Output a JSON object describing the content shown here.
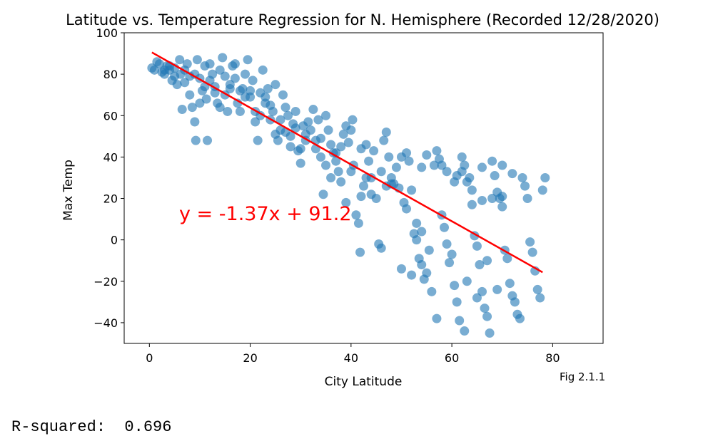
{
  "chart_data": {
    "type": "scatter",
    "title": "Latitude vs. Temperature Regression for N. Hemisphere (Recorded 12/28/2020)",
    "xlabel": "City Latitude",
    "ylabel": "Max Temp",
    "xlim": [
      -5,
      90
    ],
    "ylim": [
      -50,
      100
    ],
    "xticks": [
      0,
      20,
      40,
      60,
      80
    ],
    "yticks": [
      -40,
      -20,
      0,
      20,
      40,
      60,
      80,
      100
    ],
    "grid": false,
    "point_color": "#1f77b4",
    "line_color": "#ff0000",
    "regression": {
      "slope": -1.37,
      "intercept": 91.2,
      "x_range": [
        0.5,
        78
      ],
      "equation_label": "y = -1.37x + 91.2"
    },
    "figure_label": "Fig 2.1.1",
    "points": [
      [
        0.5,
        83
      ],
      [
        1.5,
        86
      ],
      [
        2.5,
        81
      ],
      [
        3,
        80
      ],
      [
        3.5,
        84
      ],
      [
        4,
        82
      ],
      [
        4.5,
        77
      ],
      [
        5,
        79
      ],
      [
        5.5,
        75
      ],
      [
        6,
        87
      ],
      [
        6.2,
        80
      ],
      [
        6.5,
        63
      ],
      [
        7,
        82
      ],
      [
        7.5,
        85
      ],
      [
        8,
        70
      ],
      [
        8.5,
        64
      ],
      [
        9,
        57
      ],
      [
        9.2,
        48
      ],
      [
        9.5,
        87
      ],
      [
        10,
        78
      ],
      [
        10.5,
        72
      ],
      [
        11,
        84
      ],
      [
        11.3,
        68
      ],
      [
        11.5,
        48
      ],
      [
        12,
        85
      ],
      [
        12.5,
        80
      ],
      [
        13,
        74
      ],
      [
        13.5,
        66
      ],
      [
        14,
        82
      ],
      [
        14.5,
        88
      ],
      [
        15,
        70
      ],
      [
        15.5,
        62
      ],
      [
        16,
        73
      ],
      [
        16.5,
        84
      ],
      [
        17,
        85
      ],
      [
        17.5,
        66
      ],
      [
        18,
        62
      ],
      [
        18.5,
        73
      ],
      [
        19,
        80
      ],
      [
        19.5,
        87
      ],
      [
        20,
        69
      ],
      [
        20.5,
        77
      ],
      [
        21,
        57
      ],
      [
        21.5,
        48
      ],
      [
        22,
        60
      ],
      [
        22.5,
        82
      ],
      [
        23,
        69
      ],
      [
        23.5,
        73
      ],
      [
        24,
        58
      ],
      [
        24.5,
        62
      ],
      [
        25,
        75
      ],
      [
        25.5,
        48
      ],
      [
        26,
        53
      ],
      [
        26.5,
        70
      ],
      [
        27,
        64
      ],
      [
        27.5,
        60
      ],
      [
        28,
        50
      ],
      [
        28.5,
        56
      ],
      [
        29,
        62
      ],
      [
        29.5,
        43
      ],
      [
        30,
        37
      ],
      [
        30.5,
        55
      ],
      [
        31,
        48
      ],
      [
        31.5,
        57
      ],
      [
        32,
        53
      ],
      [
        32.5,
        63
      ],
      [
        33,
        44
      ],
      [
        33.5,
        58
      ],
      [
        34,
        49
      ],
      [
        34.5,
        22
      ],
      [
        35,
        60
      ],
      [
        35.5,
        53
      ],
      [
        36,
        46
      ],
      [
        36.5,
        42
      ],
      [
        37,
        38
      ],
      [
        37.5,
        33
      ],
      [
        38,
        28
      ],
      [
        38.5,
        51
      ],
      [
        39,
        55
      ],
      [
        39.5,
        47
      ],
      [
        40,
        53
      ],
      [
        40.3,
        58
      ],
      [
        40.5,
        36
      ],
      [
        41,
        12
      ],
      [
        41.5,
        8
      ],
      [
        41.8,
        -6
      ],
      [
        42,
        21
      ],
      [
        42.5,
        26
      ],
      [
        43,
        46
      ],
      [
        43.5,
        38
      ],
      [
        44,
        30
      ],
      [
        44.5,
        43
      ],
      [
        45,
        20
      ],
      [
        45.5,
        -2
      ],
      [
        46,
        -4
      ],
      [
        46.5,
        48
      ],
      [
        47,
        52
      ],
      [
        47.5,
        40
      ],
      [
        48,
        30
      ],
      [
        48.5,
        27
      ],
      [
        49,
        35
      ],
      [
        49.5,
        25
      ],
      [
        50,
        -14
      ],
      [
        50.5,
        18
      ],
      [
        51,
        42
      ],
      [
        51.5,
        38
      ],
      [
        52,
        24
      ],
      [
        52.5,
        3
      ],
      [
        53,
        0
      ],
      [
        53.5,
        -9
      ],
      [
        54,
        -12
      ],
      [
        54.5,
        -19
      ],
      [
        55,
        -16
      ],
      [
        55.5,
        -5
      ],
      [
        56,
        -25
      ],
      [
        56.5,
        36
      ],
      [
        57,
        43
      ],
      [
        57.5,
        39
      ],
      [
        58,
        12
      ],
      [
        58.5,
        6
      ],
      [
        59,
        -2
      ],
      [
        59.5,
        -11
      ],
      [
        60,
        -7
      ],
      [
        60.5,
        -22
      ],
      [
        61,
        -30
      ],
      [
        61.5,
        -39
      ],
      [
        62,
        40
      ],
      [
        62.5,
        36
      ],
      [
        63,
        28
      ],
      [
        63.5,
        30
      ],
      [
        64,
        17
      ],
      [
        64.5,
        2
      ],
      [
        65,
        -3
      ],
      [
        65.5,
        -12
      ],
      [
        66,
        -25
      ],
      [
        66.5,
        -33
      ],
      [
        67,
        -37
      ],
      [
        67.5,
        -45
      ],
      [
        68,
        38
      ],
      [
        68.5,
        31
      ],
      [
        69,
        23
      ],
      [
        69.5,
        20
      ],
      [
        70,
        16
      ],
      [
        70.5,
        -5
      ],
      [
        71,
        -9
      ],
      [
        71.5,
        -21
      ],
      [
        72,
        -27
      ],
      [
        72.5,
        -30
      ],
      [
        73,
        -36
      ],
      [
        73.5,
        -38
      ],
      [
        74,
        30
      ],
      [
        74.5,
        26
      ],
      [
        75,
        20
      ],
      [
        75.5,
        -1
      ],
      [
        76,
        -6
      ],
      [
        76.5,
        -15
      ],
      [
        77,
        -24
      ],
      [
        77.5,
        -28
      ],
      [
        78,
        24
      ],
      [
        78.5,
        30
      ],
      [
        60.5,
        28
      ],
      [
        62.5,
        -44
      ],
      [
        57,
        -38
      ],
      [
        63,
        -20
      ],
      [
        65,
        -28
      ],
      [
        67,
        -10
      ],
      [
        69,
        -24
      ],
      [
        52,
        -17
      ],
      [
        54,
        4
      ],
      [
        48,
        27
      ],
      [
        44,
        22
      ],
      [
        40,
        33
      ],
      [
        36,
        30
      ],
      [
        33,
        48
      ],
      [
        28,
        45
      ],
      [
        24,
        65
      ],
      [
        20,
        72
      ],
      [
        16,
        75
      ],
      [
        12,
        77
      ],
      [
        8,
        79
      ],
      [
        4,
        84
      ],
      [
        3,
        82
      ],
      [
        10,
        66
      ],
      [
        14,
        64
      ],
      [
        18,
        72
      ],
      [
        22,
        71
      ],
      [
        26,
        58
      ],
      [
        30,
        44
      ],
      [
        34,
        40
      ],
      [
        38,
        45
      ],
      [
        42,
        44
      ],
      [
        46,
        33
      ],
      [
        50,
        40
      ],
      [
        54,
        35
      ],
      [
        58,
        36
      ],
      [
        62,
        33
      ],
      [
        66,
        35
      ],
      [
        70,
        36
      ],
      [
        72,
        32
      ],
      [
        55,
        41
      ],
      [
        59,
        33
      ],
      [
        61,
        31
      ],
      [
        64,
        24
      ],
      [
        66,
        19
      ],
      [
        68,
        20
      ],
      [
        70,
        21
      ],
      [
        51,
        15
      ],
      [
        53,
        8
      ],
      [
        47,
        26
      ],
      [
        43,
        30
      ],
      [
        39,
        18
      ],
      [
        37,
        42
      ],
      [
        35,
        36
      ],
      [
        31,
        51
      ],
      [
        29,
        54
      ],
      [
        27,
        52
      ],
      [
        25,
        51
      ],
      [
        23,
        66
      ],
      [
        21,
        62
      ],
      [
        19,
        69
      ],
      [
        17,
        78
      ],
      [
        15,
        79
      ],
      [
        13,
        71
      ],
      [
        11,
        74
      ],
      [
        9,
        80
      ],
      [
        7,
        76
      ],
      [
        5,
        83
      ],
      [
        2,
        85
      ],
      [
        1,
        82
      ]
    ]
  },
  "footer": {
    "r_squared": "R-squared:  0.696"
  }
}
